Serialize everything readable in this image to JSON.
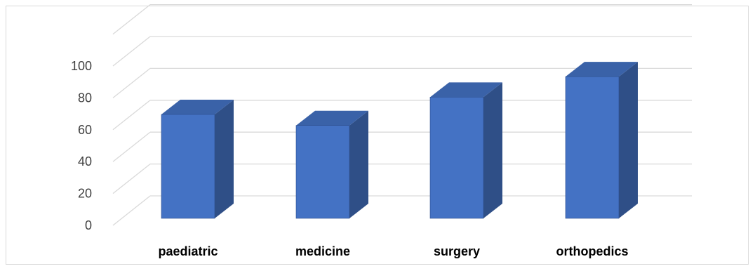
{
  "chart_data": {
    "type": "bar",
    "style": "3d-column",
    "categories": [
      "paediatric",
      "medicine",
      "surgery",
      "orthopedics"
    ],
    "values": [
      66,
      59,
      77,
      90
    ],
    "ylim": [
      0,
      120
    ],
    "yticks": [
      0,
      20,
      40,
      60,
      80,
      100
    ],
    "ytick_labels": [
      "0",
      "20",
      "40",
      "60",
      "80",
      "100"
    ],
    "title": "",
    "xlabel": "",
    "ylabel": "",
    "grid": true,
    "legend": "none",
    "colors": {
      "bar_front": "#4472C4",
      "bar_side": "#2F4F87",
      "bar_top": "#3A62A8",
      "bar_edge": "#2E4F8C",
      "grid": "#d9d9d9",
      "frame": "#d9d9d9"
    }
  }
}
